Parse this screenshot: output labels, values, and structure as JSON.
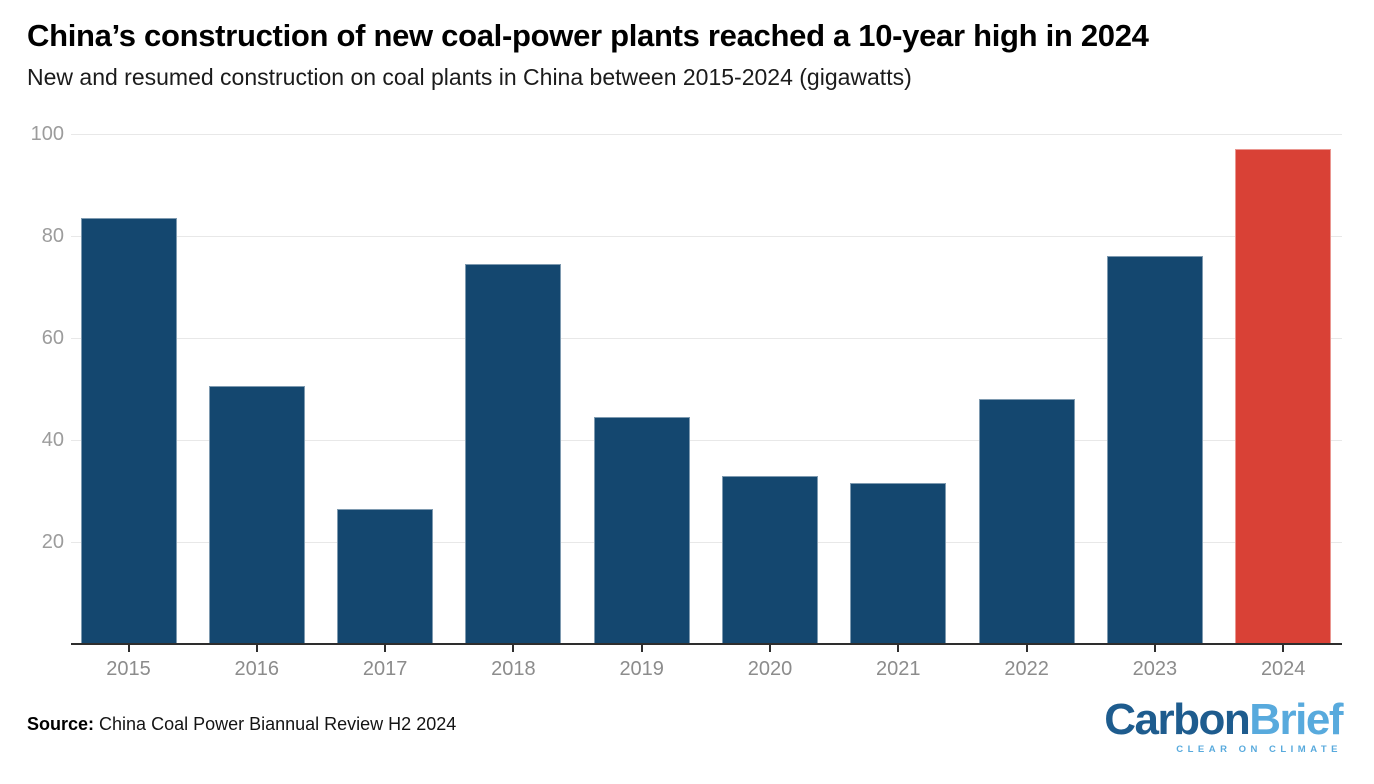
{
  "header": {
    "title": "China’s construction of new coal-power plants reached a 10-year high in 2024",
    "subtitle": "New and resumed construction on coal plants in China between 2015-2024 (gigawatts)"
  },
  "chart_data": {
    "type": "bar",
    "categories": [
      "2015",
      "2016",
      "2017",
      "2018",
      "2019",
      "2020",
      "2021",
      "2022",
      "2023",
      "2024"
    ],
    "values": [
      83.5,
      50.5,
      26.5,
      74.5,
      44.5,
      33,
      31.5,
      48,
      76,
      97
    ],
    "title": "China’s construction of new coal-power plants reached a 10-year high in 2024",
    "subtitle": "New and resumed construction on coal plants in China between 2015-2024 (gigawatts)",
    "xlabel": "",
    "ylabel": "gigawatts",
    "ylim": [
      0,
      100
    ],
    "yticks": [
      20,
      40,
      60,
      80,
      100
    ],
    "grid": true,
    "legend": false,
    "bar_color": "#14476f",
    "highlight_color": "#d94136",
    "highlight_category": "2024"
  },
  "footer": {
    "source_label": "Source:",
    "source_text": " China Coal Power Biannual Review H2 2024",
    "logo": {
      "word_dark": "Carbon",
      "word_light": "Brief",
      "tagline": "CLEAR ON CLIMATE",
      "dark_color": "#1e5c8e",
      "light_color": "#58aadd"
    }
  },
  "style": {
    "background": "#ffffff",
    "grid_color": "#e8e8e8",
    "axis_color": "#2e2e2e",
    "x_label_color": "#8c8c8c",
    "y_label_color": "#9c9c9c",
    "title_color": "#000000",
    "subtitle_color": "#1b1b1b"
  }
}
